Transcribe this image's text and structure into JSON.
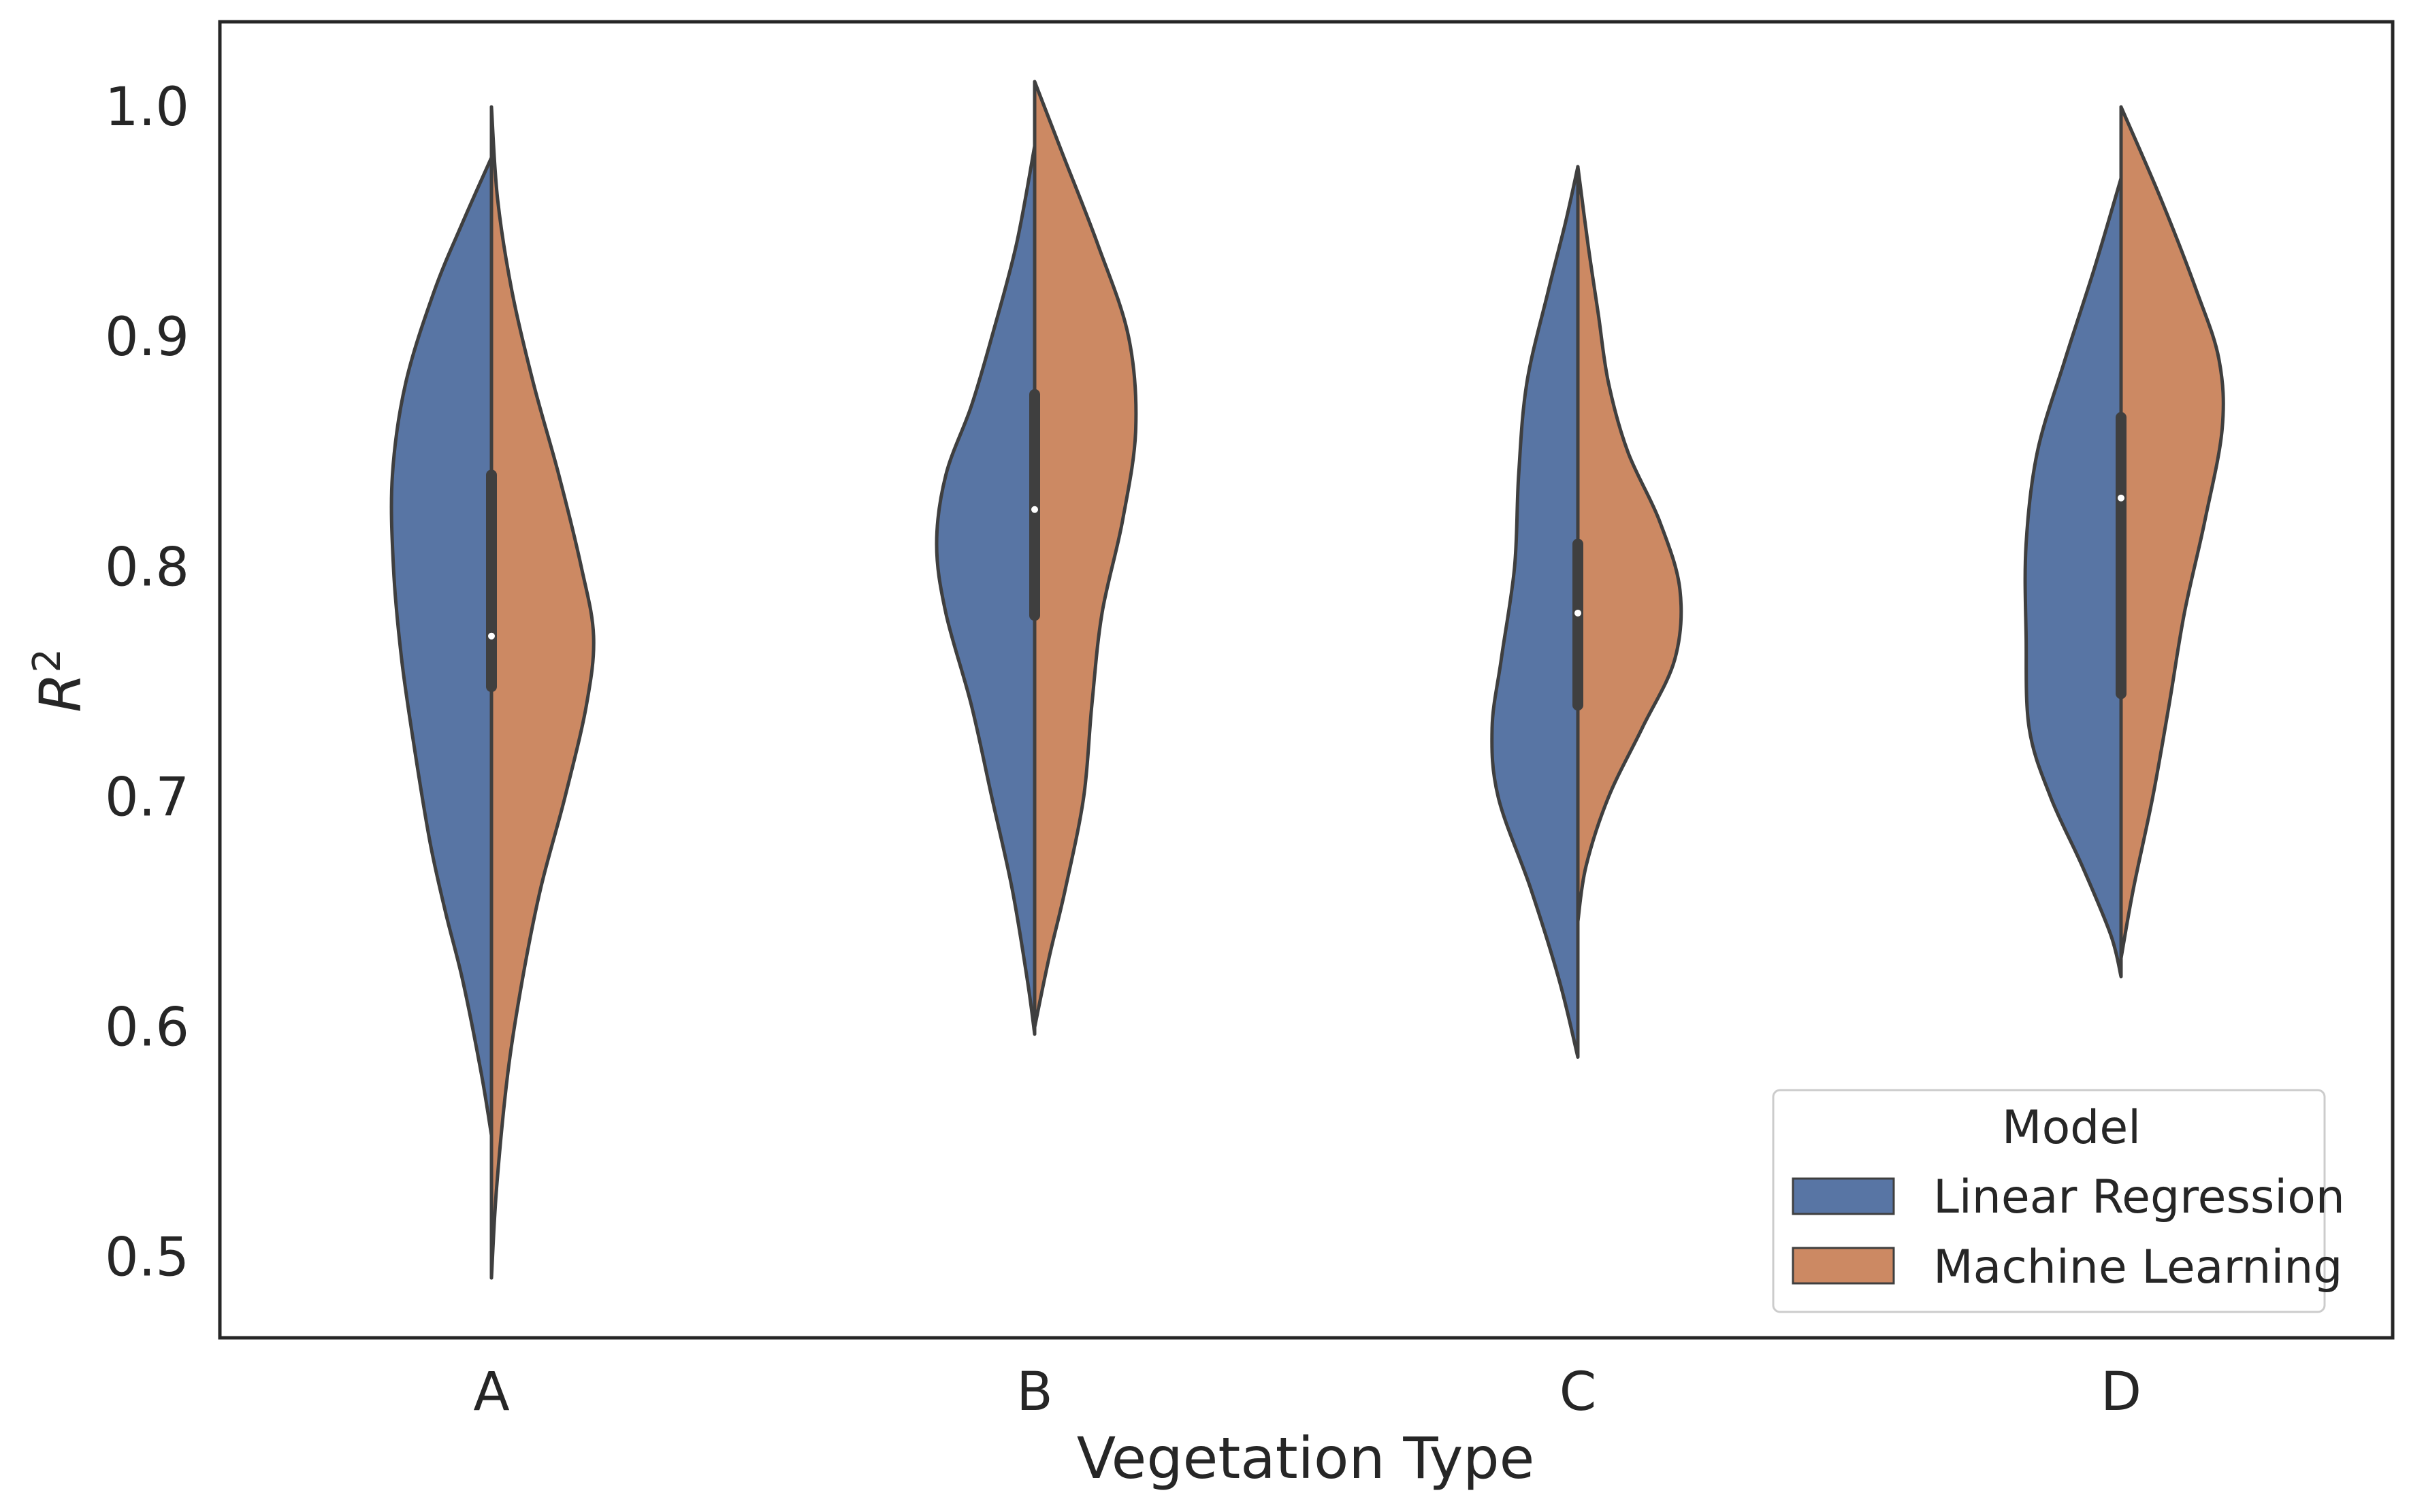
{
  "chart_data": {
    "type": "violin",
    "split": true,
    "title": "",
    "xlabel": "Vegetation Type",
    "ylabel": "R",
    "ylabel_superscript": "2",
    "ylim": [
      0.465,
      1.037
    ],
    "yticks": [
      0.5,
      0.6,
      0.7,
      0.8,
      0.9,
      1.0
    ],
    "ytick_labels": [
      "0.5",
      "0.6",
      "0.7",
      "0.8",
      "0.9",
      "1.0"
    ],
    "categories": [
      "A",
      "B",
      "C",
      "D"
    ],
    "grid": false,
    "legend": {
      "title": "Model",
      "placement": "lower-right",
      "entries": [
        "Linear Regression",
        "Machine Learning"
      ]
    },
    "series": [
      {
        "name": "Linear Regression",
        "side": "left",
        "color": "#5875a4",
        "profiles": [
          [
            [
              0.553,
              0.0
            ],
            [
              0.58,
              0.1
            ],
            [
              0.62,
              0.28
            ],
            [
              0.65,
              0.45
            ],
            [
              0.68,
              0.6
            ],
            [
              0.72,
              0.75
            ],
            [
              0.76,
              0.88
            ],
            [
              0.8,
              0.96
            ],
            [
              0.84,
              0.97
            ],
            [
              0.88,
              0.84
            ],
            [
              0.92,
              0.56
            ],
            [
              0.95,
              0.28
            ],
            [
              0.978,
              0.0
            ]
          ],
          [
            [
              0.597,
              0.0
            ],
            [
              0.62,
              0.07
            ],
            [
              0.66,
              0.22
            ],
            [
              0.7,
              0.42
            ],
            [
              0.74,
              0.62
            ],
            [
              0.78,
              0.87
            ],
            [
              0.81,
              0.96
            ],
            [
              0.84,
              0.87
            ],
            [
              0.87,
              0.62
            ],
            [
              0.9,
              0.42
            ],
            [
              0.94,
              0.18
            ],
            [
              0.983,
              0.0
            ]
          ],
          [
            [
              0.587,
              0.0
            ],
            [
              0.62,
              0.18
            ],
            [
              0.66,
              0.46
            ],
            [
              0.7,
              0.78
            ],
            [
              0.73,
              0.84
            ],
            [
              0.76,
              0.75
            ],
            [
              0.8,
              0.62
            ],
            [
              0.84,
              0.58
            ],
            [
              0.88,
              0.5
            ],
            [
              0.92,
              0.29
            ],
            [
              0.95,
              0.12
            ],
            [
              0.974,
              0.0
            ]
          ],
          [
            [
              0.622,
              0.0
            ],
            [
              0.64,
              0.1
            ],
            [
              0.67,
              0.38
            ],
            [
              0.7,
              0.69
            ],
            [
              0.73,
              0.9
            ],
            [
              0.77,
              0.93
            ],
            [
              0.81,
              0.93
            ],
            [
              0.85,
              0.82
            ],
            [
              0.89,
              0.55
            ],
            [
              0.93,
              0.26
            ],
            [
              0.969,
              0.0
            ]
          ]
        ]
      },
      {
        "name": "Machine Learning",
        "side": "right",
        "color": "#cc8963",
        "profiles": [
          [
            [
              0.491,
              0.0
            ],
            [
              0.53,
              0.05
            ],
            [
              0.58,
              0.16
            ],
            [
              0.62,
              0.3
            ],
            [
              0.66,
              0.48
            ],
            [
              0.7,
              0.72
            ],
            [
              0.74,
              0.93
            ],
            [
              0.77,
              1.0
            ],
            [
              0.8,
              0.88
            ],
            [
              0.84,
              0.66
            ],
            [
              0.88,
              0.41
            ],
            [
              0.92,
              0.2
            ],
            [
              0.96,
              0.06
            ],
            [
              1.0,
              0.0
            ]
          ],
          [
            [
              0.6,
              0.0
            ],
            [
              0.63,
              0.14
            ],
            [
              0.66,
              0.3
            ],
            [
              0.7,
              0.48
            ],
            [
              0.74,
              0.56
            ],
            [
              0.78,
              0.66
            ],
            [
              0.82,
              0.86
            ],
            [
              0.86,
              0.99
            ],
            [
              0.9,
              0.92
            ],
            [
              0.94,
              0.62
            ],
            [
              0.98,
              0.27
            ],
            [
              1.011,
              0.0
            ]
          ],
          [
            [
              0.646,
              0.0
            ],
            [
              0.67,
              0.08
            ],
            [
              0.7,
              0.3
            ],
            [
              0.73,
              0.63
            ],
            [
              0.76,
              0.95
            ],
            [
              0.79,
              1.0
            ],
            [
              0.82,
              0.8
            ],
            [
              0.85,
              0.49
            ],
            [
              0.88,
              0.3
            ],
            [
              0.91,
              0.2
            ],
            [
              0.94,
              0.1
            ],
            [
              0.974,
              0.0
            ]
          ],
          [
            [
              0.63,
              0.0
            ],
            [
              0.66,
              0.12
            ],
            [
              0.7,
              0.31
            ],
            [
              0.74,
              0.47
            ],
            [
              0.78,
              0.62
            ],
            [
              0.82,
              0.82
            ],
            [
              0.86,
              0.99
            ],
            [
              0.89,
              0.96
            ],
            [
              0.92,
              0.74
            ],
            [
              0.96,
              0.39
            ],
            [
              1.0,
              0.0
            ]
          ]
        ]
      }
    ],
    "box": [
      {
        "q1": 0.748,
        "median": 0.77,
        "q3": 0.84
      },
      {
        "q1": 0.779,
        "median": 0.825,
        "q3": 0.875
      },
      {
        "q1": 0.74,
        "median": 0.78,
        "q3": 0.81
      },
      {
        "q1": 0.745,
        "median": 0.83,
        "q3": 0.865
      }
    ]
  }
}
